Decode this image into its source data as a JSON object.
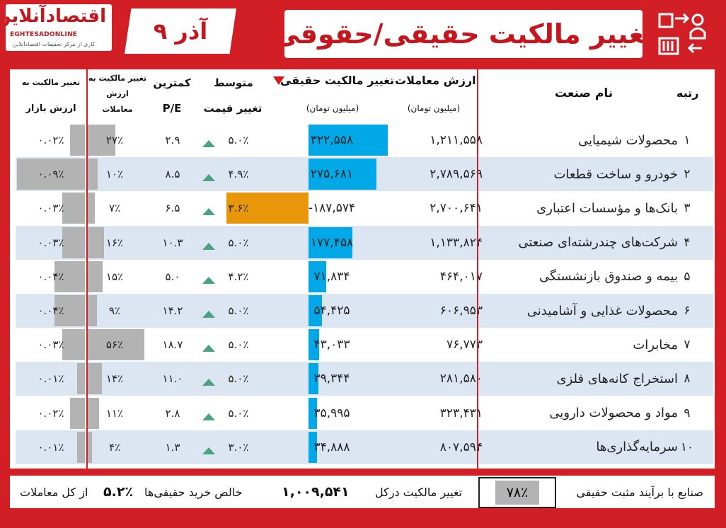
{
  "header": {
    "title": "تغییر مالکیت حقیقی/حقوقی",
    "date": "۹ آذر",
    "logo_main": "اقتصادآنلاین",
    "logo_en": "EGHTESADONLINE",
    "logo_tag": "کاری از مرکز تحقیقات اقتصادآنلاین"
  },
  "table": {
    "headers": {
      "rank": "رتبه",
      "industry": "نام صنعت",
      "trade_value": "ارزش معاملات",
      "trade_value_unit": "(میلیون تومان)",
      "real_change": "تغییر مالکیت حقیقی",
      "real_change_unit": "(میلیون تومان)",
      "avg_price_change_1": "متوسط",
      "avg_price_change_2": "تغییر قیمت",
      "min_pe_1": "کمترین",
      "min_pe_2": "P/E",
      "ratio_trade_1": "تغییر مالکیت به",
      "ratio_trade_2": "ارزش",
      "ratio_trade_3": "معاملات",
      "ratio_mcap_1": "تغییر مالکیت به",
      "ratio_mcap_2": "ارزش بازار"
    },
    "rows": [
      {
        "rank": "۱",
        "industry": "محصولات شیمیایی",
        "trade_value": "۱,۲۱۱,۵۵۸",
        "real_change": "۳۲۲,۵۵۸",
        "real_change_value": 322558,
        "avg_change": "۵.۰٪",
        "pe": "۲.۹",
        "ratio_trade": "۲۷٪",
        "ratio_trade_pct": 27,
        "ratio_mcap": "۰.۰۲٪",
        "ratio_mcap_pct": 0.02
      },
      {
        "rank": "۲",
        "industry": "خودرو و ساخت قطعات",
        "trade_value": "۲,۷۸۹,۵۶۹",
        "real_change": "۲۷۵,۶۸۱",
        "real_change_value": 275681,
        "avg_change": "۴.۹٪",
        "pe": "۸.۵",
        "ratio_trade": "۱۰٪",
        "ratio_trade_pct": 10,
        "ratio_mcap": "۰.۰۹٪",
        "ratio_mcap_pct": 0.09
      },
      {
        "rank": "۳",
        "industry": "بانک‌ها و مؤسسات اعتباری",
        "trade_value": "۲,۷۰۰,۶۴۱",
        "real_change": "-۱۸۷,۵۷۴",
        "real_change_value": -187574,
        "avg_change": "۳.۶٪",
        "pe": "۶.۵",
        "ratio_trade": "۷٪",
        "ratio_trade_pct": 7,
        "ratio_mcap": "۰.۰۳٪",
        "ratio_mcap_pct": 0.03
      },
      {
        "rank": "۴",
        "industry": "شرکت‌های چندرشته‌ای صنعتی",
        "trade_value": "۱,۱۳۳,۸۲۴",
        "real_change": "۱۷۷,۴۵۸",
        "real_change_value": 177458,
        "avg_change": "۵.۰٪",
        "pe": "۱۰.۳",
        "ratio_trade": "۱۶٪",
        "ratio_trade_pct": 16,
        "ratio_mcap": "۰.۰۳٪",
        "ratio_mcap_pct": 0.03
      },
      {
        "rank": "۵",
        "industry": "بیمه و صندوق بازنشستگی",
        "trade_value": "۴۶۴,۰۱۷",
        "real_change": "۷۱,۸۳۴",
        "real_change_value": 71834,
        "avg_change": "۴.۲٪",
        "pe": "۵.۰",
        "ratio_trade": "۱۵٪",
        "ratio_trade_pct": 15,
        "ratio_mcap": "۰.۰۴٪",
        "ratio_mcap_pct": 0.04
      },
      {
        "rank": "۶",
        "industry": "محصولات غذایی و آشامیدنی",
        "trade_value": "۶۰۶,۹۵۳",
        "real_change": "۵۴,۴۲۵",
        "real_change_value": 54425,
        "avg_change": "۵.۰٪",
        "pe": "۱۴.۲",
        "ratio_trade": "۹٪",
        "ratio_trade_pct": 9,
        "ratio_mcap": "۰.۰۴٪",
        "ratio_mcap_pct": 0.04
      },
      {
        "rank": "۷",
        "industry": "مخابرات",
        "trade_value": "۷۶,۷۷۳",
        "real_change": "۴۳,۰۳۳",
        "real_change_value": 43033,
        "avg_change": "۵.۰٪",
        "pe": "۱۸.۷",
        "ratio_trade": "۵۶٪",
        "ratio_trade_pct": 56,
        "ratio_mcap": "۰.۰۳٪",
        "ratio_mcap_pct": 0.03
      },
      {
        "rank": "۸",
        "industry": "استخراج کانه‌های فلزی",
        "trade_value": "۲۸۱,۵۸۰",
        "real_change": "۳۹,۳۴۴",
        "real_change_value": 39344,
        "avg_change": "۵.۰٪",
        "pe": "۱۱.۰",
        "ratio_trade": "۱۴٪",
        "ratio_trade_pct": 14,
        "ratio_mcap": "۰.۰۱٪",
        "ratio_mcap_pct": 0.01
      },
      {
        "rank": "۹",
        "industry": "مواد و محصولات دارویی",
        "trade_value": "۳۲۳,۴۳۱",
        "real_change": "۳۵,۹۹۵",
        "real_change_value": 35995,
        "avg_change": "۵.۰٪",
        "pe": "۲.۸",
        "ratio_trade": "۱۱٪",
        "ratio_trade_pct": 11,
        "ratio_mcap": "۰.۰۲٪",
        "ratio_mcap_pct": 0.02
      },
      {
        "rank": "۱۰",
        "industry": "سرمایه‌گذاری‌ها",
        "trade_value": "۸۰۷,۵۹۴",
        "real_change": "۳۴,۸۸۸",
        "real_change_value": 34888,
        "avg_change": "۳.۰٪",
        "pe": "۱.۳",
        "ratio_trade": "۴٪",
        "ratio_trade_pct": 4,
        "ratio_mcap": "۰.۰۱٪",
        "ratio_mcap_pct": 0.01
      }
    ]
  },
  "footer": {
    "positive_label": "صنایع با برآیند مثبت حقیقی",
    "positive_value": "۷۸٪",
    "total_label": "تغییر مالکیت درکل",
    "total_value": "۱,۰۰۹,۵۴۱",
    "net_label": "خالص خرید حقیقی‌ها",
    "net_value": "۵.۲٪",
    "net_suffix": "از کل معاملات"
  },
  "colors": {
    "brand_red": "#d21f25",
    "positive_bar": "#00a8e8",
    "negative_bar": "#e8960a",
    "ratio_bar": "#b3b3b3",
    "alt_row": "#dce6f2",
    "up_arrow": "#4aa37f"
  }
}
